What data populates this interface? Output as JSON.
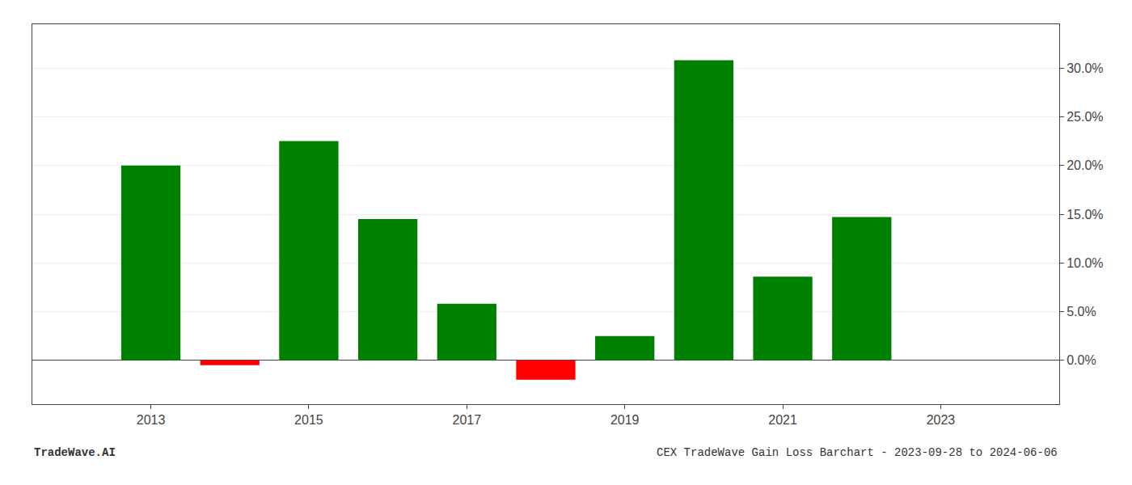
{
  "chart_data": {
    "type": "bar",
    "x": [
      2013,
      2014,
      2015,
      2016,
      2017,
      2018,
      2019,
      2020,
      2021,
      2022
    ],
    "values": [
      0.2,
      -0.005,
      0.225,
      0.145,
      0.058,
      -0.02,
      0.025,
      0.308,
      0.086,
      0.147
    ],
    "colors": [
      "#008000",
      "#ff0000",
      "#008000",
      "#008000",
      "#008000",
      "#ff0000",
      "#008000",
      "#008000",
      "#008000",
      "#008000"
    ],
    "xlim": [
      2011.5,
      2024.5
    ],
    "xticks": [
      2013,
      2015,
      2017,
      2019,
      2021,
      2023
    ],
    "ylim": [
      -0.045,
      0.345
    ],
    "yticks": [
      {
        "value": 0.0,
        "label": "0.0%"
      },
      {
        "value": 0.05,
        "label": "5.0%"
      },
      {
        "value": 0.1,
        "label": "10.0%"
      },
      {
        "value": 0.15,
        "label": "15.0%"
      },
      {
        "value": 0.2,
        "label": "20.0%"
      },
      {
        "value": 0.25,
        "label": "25.0%"
      },
      {
        "value": 0.3,
        "label": "30.0%"
      }
    ],
    "grid": true,
    "annotations": [
      "TradeWave.AI",
      "CEX TradeWave Gain Loss Barchart - 2023-09-28 to 2024-06-06"
    ]
  }
}
